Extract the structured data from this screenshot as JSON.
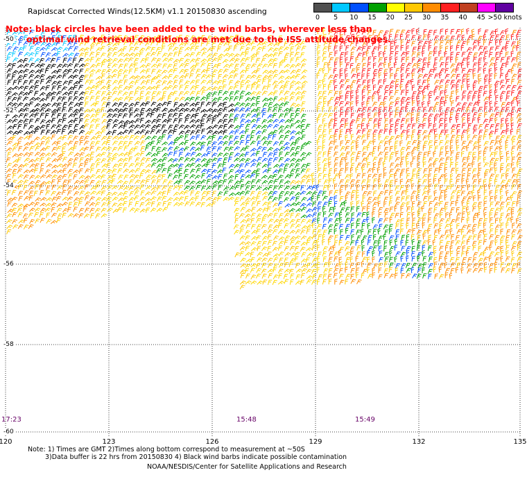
{
  "title": "Rapidscat Corrected Winds(12.5KM) v1.1 20150830 ascending",
  "note": {
    "line1": "Note: black circles have been added to the wind barbs, wherever less than",
    "line2": "optimal wind retrieval conditions are met due to the ISS attitude changes."
  },
  "colorbar": {
    "labels": [
      "0",
      "5",
      "10",
      "15",
      "20",
      "25",
      "30",
      "35",
      "40",
      "45",
      ">50 knots"
    ],
    "colors": [
      "#505050",
      "#00c8ff",
      "#0050ff",
      "#00a000",
      "#ffff00",
      "#ffc800",
      "#ff8c00",
      "#ff2020",
      "#c04020",
      "#ff00ff",
      "#6000a0"
    ]
  },
  "axes": {
    "x_ticks": [
      "120",
      "123",
      "126",
      "129",
      "132",
      "135"
    ],
    "y_ticks": [
      "-50",
      "-52",
      "-54",
      "-56",
      "-58",
      "-60"
    ]
  },
  "times": [
    "17:23",
    "15:48",
    "15:49"
  ],
  "footer": {
    "line1": "Note: 1) Times are GMT 2)Times along bottom correspond to measurement at ~50S",
    "line2": "3)Data buffer is 22 hrs from 20150830 4) Black wind barbs indicate possible contamination",
    "line3": "NOAA/NESDIS/Center for Satellite Applications and Research"
  }
}
